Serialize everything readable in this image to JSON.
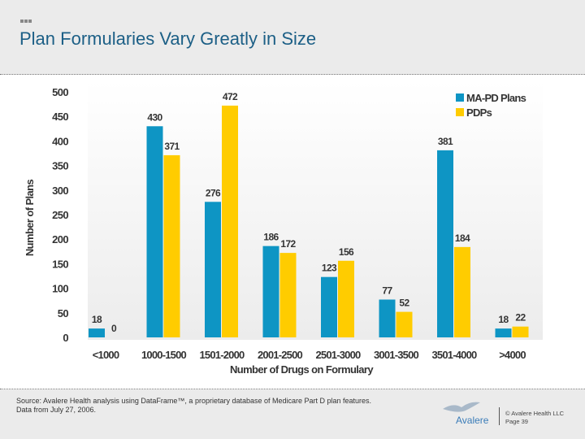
{
  "header": {
    "title": "Plan Formularies Vary Greatly in Size"
  },
  "footer": {
    "source_line1": "Source:  Avalere Health analysis using DataFrame™, a proprietary database of Medicare Part D plan features.",
    "source_line2": "Data from July 27, 2006.",
    "logo": "Avalere",
    "copyright": "© Avalere Health LLC",
    "page": "Page 39"
  },
  "chart_data": {
    "type": "bar",
    "title": "",
    "xlabel": "Number of Drugs on Formulary",
    "ylabel": "Number of Plans",
    "ylim": [
      0,
      500
    ],
    "yticks": [
      0,
      50,
      100,
      150,
      200,
      250,
      300,
      350,
      400,
      450,
      500
    ],
    "grid": false,
    "legend": "top-right",
    "categories": [
      "<1000",
      "1000-1500",
      "1501-2000",
      "2001-2500",
      "2501-3000",
      "3001-3500",
      "3501-4000",
      ">4000"
    ],
    "series": [
      {
        "name": "MA-PD Plans",
        "color": "#0e95c4",
        "values": [
          18,
          430,
          276,
          186,
          123,
          77,
          381,
          18
        ]
      },
      {
        "name": "PDPs",
        "color": "#ffcc00",
        "values": [
          0,
          371,
          472,
          172,
          156,
          52,
          184,
          22
        ]
      }
    ]
  }
}
